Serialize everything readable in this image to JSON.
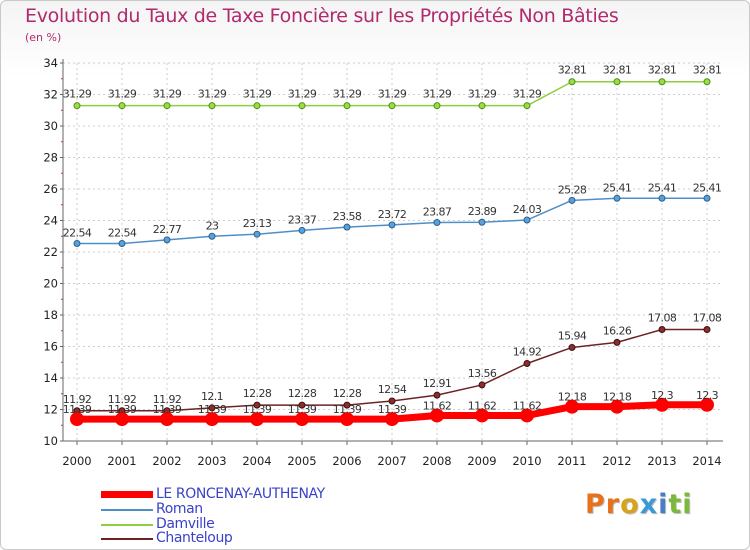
{
  "title": "Evolution du Taux de Taxe Foncière sur les Propriétés Non Bâties",
  "unit_label": "(en %)",
  "colors": {
    "title": "#b02a6d",
    "le_roncenay": "#ff0000",
    "roman": "#4f8fc8",
    "damville": "#8fce3c",
    "chanteloup": "#6e2323",
    "legend_text": "#3a42c8",
    "grid": "#c8c8c8"
  },
  "logo": {
    "text": "Proxiti"
  },
  "chart_data": {
    "type": "line",
    "title": "Evolution du Taux de Taxe Foncière sur les Propriétés Non Bâties",
    "ylabel": "(en %)",
    "xlabel": "",
    "ylim": [
      10,
      34
    ],
    "yticks": [
      10,
      12,
      14,
      16,
      18,
      20,
      22,
      24,
      26,
      28,
      30,
      32,
      34
    ],
    "categories": [
      "2000",
      "2001",
      "2002",
      "2003",
      "2004",
      "2005",
      "2006",
      "2007",
      "2008",
      "2009",
      "2010",
      "2011",
      "2012",
      "2013",
      "2014"
    ],
    "grid": true,
    "legend_position": "bottom-left",
    "series": [
      {
        "name": "LE RONCENAY-AUTHENAY",
        "color": "#ff0000",
        "values": [
          11.39,
          11.39,
          11.39,
          11.39,
          11.39,
          11.39,
          11.39,
          11.39,
          11.62,
          11.62,
          11.62,
          12.18,
          12.18,
          12.3,
          12.3
        ],
        "labels": [
          "11.39",
          "11.39",
          "11.39",
          "11.39",
          "11.39",
          "11.39",
          "11.39",
          "11.39",
          "11.62",
          "11.62",
          "11.62",
          "12.18",
          "12.18",
          "12.3",
          "12.3"
        ]
      },
      {
        "name": "Roman",
        "color": "#4f8fc8",
        "values": [
          22.54,
          22.54,
          22.77,
          23,
          23.13,
          23.37,
          23.58,
          23.72,
          23.87,
          23.89,
          24.03,
          25.28,
          25.41,
          25.41,
          25.41
        ],
        "labels": [
          "22.54",
          "22.54",
          "22.77",
          "23",
          "23.13",
          "23.37",
          "23.58",
          "23.72",
          "23.87",
          "23.89",
          "24.03",
          "25.28",
          "25.41",
          "25.41",
          "25.41"
        ]
      },
      {
        "name": "Damville",
        "color": "#8fce3c",
        "values": [
          31.29,
          31.29,
          31.29,
          31.29,
          31.29,
          31.29,
          31.29,
          31.29,
          31.29,
          31.29,
          31.29,
          32.81,
          32.81,
          32.81,
          32.81
        ],
        "labels": [
          "31.29",
          "31.29",
          "31.29",
          "31.29",
          "31.29",
          "31.29",
          "31.29",
          "31.29",
          "31.29",
          "31.29",
          "31.29",
          "32.81",
          "32.81",
          "32.81",
          "32.81"
        ]
      },
      {
        "name": "Chanteloup",
        "color": "#6e2323",
        "values": [
          11.92,
          11.92,
          11.92,
          12.1,
          12.28,
          12.28,
          12.28,
          12.54,
          12.91,
          13.56,
          14.92,
          15.94,
          16.26,
          17.08,
          17.08
        ],
        "labels": [
          "11.92",
          "11.92",
          "11.92",
          "12.1",
          "12.28",
          "12.28",
          "12.28",
          "12.54",
          "12.91",
          "13.56",
          "14.92",
          "15.94",
          "16.26",
          "17.08",
          "17.08"
        ]
      }
    ]
  }
}
